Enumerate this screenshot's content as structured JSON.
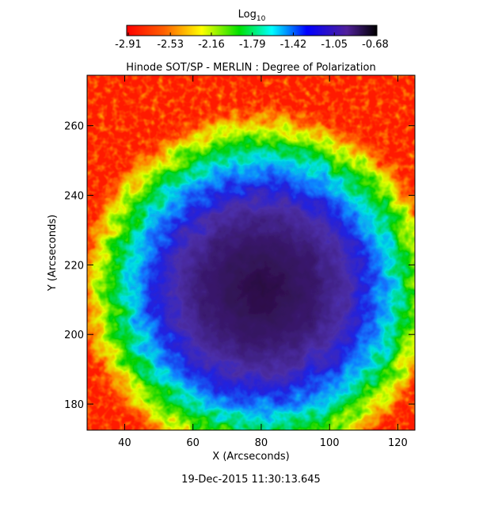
{
  "chart_data": {
    "type": "image",
    "title": "Hinode SOT/SP - MERLIN : Degree of Polarization",
    "xlabel": "X (Arcseconds)",
    "ylabel": "Y (Arcseconds)",
    "footer": "19-Dec-2015 11:30:13.645",
    "xlim": [
      29,
      125
    ],
    "ylim": [
      172.5,
      274.5
    ],
    "xticks": [
      40,
      60,
      80,
      100,
      120
    ],
    "yticks": [
      180,
      200,
      220,
      240,
      260
    ],
    "colorbar": {
      "label": "Log",
      "label_sub": "10",
      "clim": [
        -2.91,
        -0.68
      ],
      "ticks": [
        -2.91,
        -2.53,
        -2.16,
        -1.79,
        -1.42,
        -1.05,
        -0.68
      ]
    }
  }
}
